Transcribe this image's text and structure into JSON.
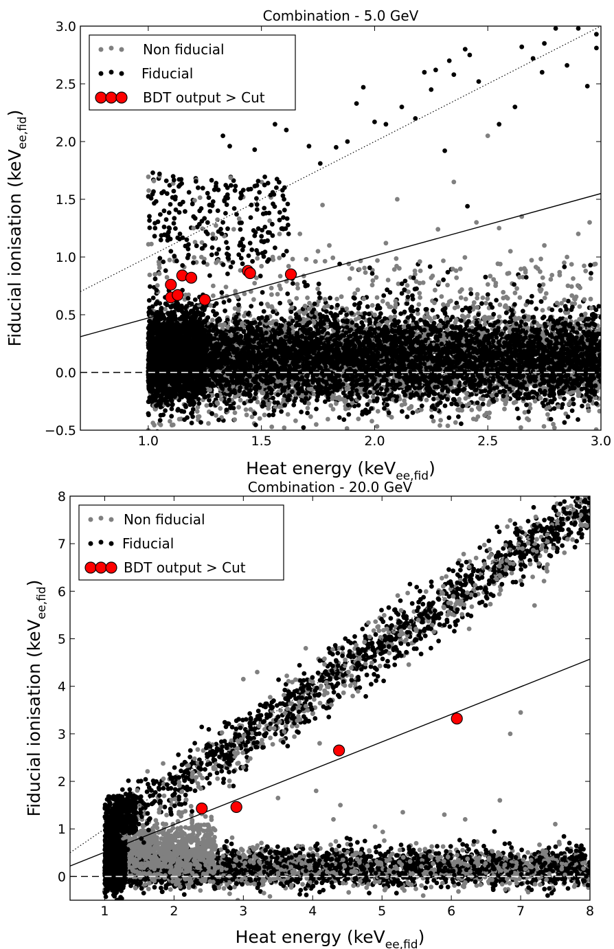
{
  "chart_data": [
    {
      "type": "scatter",
      "title": "Combination - 5.0 GeV",
      "xlabel": "Heat energy (keV",
      "xlabel_sub": "ee,fid",
      "xlabel_close": ")",
      "ylabel": "Fiducial ionisation (keV",
      "ylabel_sub": "ee,fid",
      "ylabel_close": ")",
      "xlim": [
        0.7,
        3.0
      ],
      "ylim": [
        -0.5,
        3.0
      ],
      "x_ticks": [
        1.0,
        1.5,
        2.0,
        2.5,
        3.0
      ],
      "x_tick_labels": [
        "1.0",
        "1.5",
        "2.0",
        "2.5",
        "3.0"
      ],
      "y_ticks": [
        -0.5,
        0.0,
        0.5,
        1.0,
        1.5,
        2.0,
        2.5,
        3.0
      ],
      "y_tick_labels": [
        "−0.5",
        "0.0",
        "0.5",
        "1.0",
        "1.5",
        "2.0",
        "2.5",
        "3.0"
      ],
      "grid": false,
      "legend_position": "top-left",
      "legend": [
        "Non fiducial",
        "Fiducial",
        "BDT output > Cut"
      ],
      "colors": {
        "non_fiducial": "#808080",
        "fiducial": "#000000",
        "bdt": "#ff0000"
      },
      "lines": {
        "dotted_fiducial_line": [
          [
            0.7,
            0.7
          ],
          [
            3.0,
            3.0
          ]
        ],
        "solid_cut_line": [
          [
            0.7,
            0.31
          ],
          [
            3.0,
            1.55
          ]
        ],
        "dashed_zero_line": [
          [
            0.7,
            0.0
          ],
          [
            3.0,
            0.0
          ]
        ]
      },
      "series": [
        {
          "name": "BDT output > Cut",
          "x": [
            1.1,
            1.1,
            1.13,
            1.15,
            1.19,
            1.25,
            1.44,
            1.45,
            1.63
          ],
          "y": [
            0.76,
            0.65,
            0.67,
            0.84,
            0.82,
            0.63,
            0.88,
            0.86,
            0.85
          ]
        }
      ],
      "fiducial_band_points": [
        [
          1.02,
          1.73
        ],
        [
          1.05,
          1.72
        ],
        [
          1.08,
          1.66
        ],
        [
          1.12,
          1.52
        ],
        [
          1.18,
          1.56
        ],
        [
          1.22,
          1.6
        ],
        [
          1.3,
          1.64
        ],
        [
          1.35,
          1.54
        ],
        [
          1.42,
          1.58
        ],
        [
          1.48,
          1.62
        ],
        [
          1.55,
          1.56
        ],
        [
          1.6,
          1.5
        ],
        [
          1.03,
          1.25
        ],
        [
          1.07,
          1.4
        ],
        [
          1.14,
          1.2
        ],
        [
          1.2,
          1.35
        ],
        [
          1.27,
          1.45
        ],
        [
          1.33,
          1.3
        ],
        [
          1.38,
          1.42
        ],
        [
          1.45,
          1.12
        ],
        [
          1.52,
          1.38
        ],
        [
          1.58,
          1.32
        ],
        [
          1.62,
          1.2
        ],
        [
          1.1,
          1.05
        ],
        [
          1.17,
          1.15
        ],
        [
          1.25,
          1.1
        ],
        [
          1.31,
          1.22
        ],
        [
          1.4,
          1.02
        ],
        [
          1.5,
          1.18
        ],
        [
          1.56,
          1.08
        ],
        [
          1.35,
          1.6
        ],
        [
          1.33,
          2.05
        ],
        [
          1.36,
          1.96
        ],
        [
          1.47,
          1.93
        ],
        [
          1.56,
          2.15
        ],
        [
          1.61,
          2.1
        ],
        [
          1.71,
          1.96
        ],
        [
          1.76,
          1.81
        ],
        [
          1.83,
          1.95
        ],
        [
          1.88,
          2.0
        ],
        [
          1.92,
          2.33
        ],
        [
          1.95,
          2.47
        ],
        [
          2.0,
          2.17
        ],
        [
          2.05,
          2.15
        ],
        [
          2.12,
          2.3
        ],
        [
          2.18,
          2.2
        ],
        [
          2.22,
          2.6
        ],
        [
          2.25,
          2.45
        ],
        [
          2.27,
          2.62
        ],
        [
          2.33,
          2.7
        ],
        [
          2.35,
          2.58
        ],
        [
          2.4,
          2.8
        ],
        [
          2.42,
          2.75
        ],
        [
          2.46,
          2.52
        ],
        [
          2.55,
          2.15
        ],
        [
          2.62,
          2.3
        ],
        [
          2.65,
          2.82
        ],
        [
          2.7,
          2.72
        ],
        [
          2.74,
          2.6
        ],
        [
          2.75,
          2.85
        ],
        [
          2.8,
          2.98
        ],
        [
          2.85,
          2.66
        ],
        [
          2.9,
          2.98
        ],
        [
          2.94,
          2.48
        ],
        [
          2.98,
          2.81
        ],
        [
          2.98,
          2.93
        ],
        [
          2.31,
          1.92
        ],
        [
          2.41,
          1.44
        ]
      ],
      "non_fiducial_sparse_points": [
        [
          1.05,
          1.7
        ],
        [
          1.2,
          1.25
        ],
        [
          1.3,
          0.95
        ],
        [
          1.5,
          0.92
        ],
        [
          1.55,
          1.0
        ],
        [
          1.67,
          1.2
        ],
        [
          1.75,
          1.05
        ],
        [
          1.8,
          1.1
        ],
        [
          1.9,
          0.9
        ],
        [
          2.1,
          1.5
        ],
        [
          2.35,
          1.65
        ],
        [
          2.45,
          1.3
        ],
        [
          2.55,
          1.25
        ],
        [
          2.65,
          1.35
        ],
        [
          2.75,
          1.1
        ],
        [
          2.85,
          1.0
        ],
        [
          2.95,
          1.3
        ],
        [
          2.5,
          2.05
        ],
        [
          2.28,
          1.24
        ],
        [
          1.62,
          0.92
        ],
        [
          2.05,
          1.12
        ],
        [
          2.2,
          0.96
        ],
        [
          2.6,
          1.05
        ],
        [
          2.9,
          1.2
        ],
        [
          1.77,
          1.45
        ]
      ],
      "x_label_fraction_bdt": null
    },
    {
      "type": "scatter",
      "title": "Combination - 20.0 GeV",
      "xlabel": "Heat energy (keV",
      "xlabel_sub": "ee,fid",
      "xlabel_close": ")",
      "ylabel": "Fiducial ionisation (keV",
      "ylabel_sub": "ee,fid",
      "ylabel_close": ")",
      "xlim": [
        0.5,
        8.0
      ],
      "ylim": [
        -0.5,
        8.0
      ],
      "x_ticks": [
        1,
        2,
        3,
        4,
        5,
        6,
        7,
        8
      ],
      "x_tick_labels": [
        "1",
        "2",
        "3",
        "4",
        "5",
        "6",
        "7",
        "8"
      ],
      "y_ticks": [
        0,
        1,
        2,
        3,
        4,
        5,
        6,
        7,
        8
      ],
      "y_tick_labels": [
        "0",
        "1",
        "2",
        "3",
        "4",
        "5",
        "6",
        "7",
        "8"
      ],
      "grid": false,
      "legend_position": "top-left",
      "legend": [
        "Non fiducial",
        "Fiducial",
        "BDT output > Cut"
      ],
      "colors": {
        "non_fiducial": "#808080",
        "fiducial": "#000000",
        "bdt": "#ff0000"
      },
      "lines": {
        "dotted_fiducial_line": [
          [
            0.5,
            0.5
          ],
          [
            8.0,
            8.0
          ]
        ],
        "solid_cut_line": [
          [
            0.5,
            0.22
          ],
          [
            8.0,
            4.57
          ]
        ],
        "dashed_zero_line": [
          [
            0.5,
            0.0
          ],
          [
            8.0,
            0.0
          ]
        ]
      },
      "series": [
        {
          "name": "BDT output > Cut",
          "x": [
            2.4,
            2.9,
            4.38,
            6.08
          ],
          "y": [
            1.43,
            1.46,
            2.65,
            3.32
          ]
        }
      ]
    }
  ]
}
